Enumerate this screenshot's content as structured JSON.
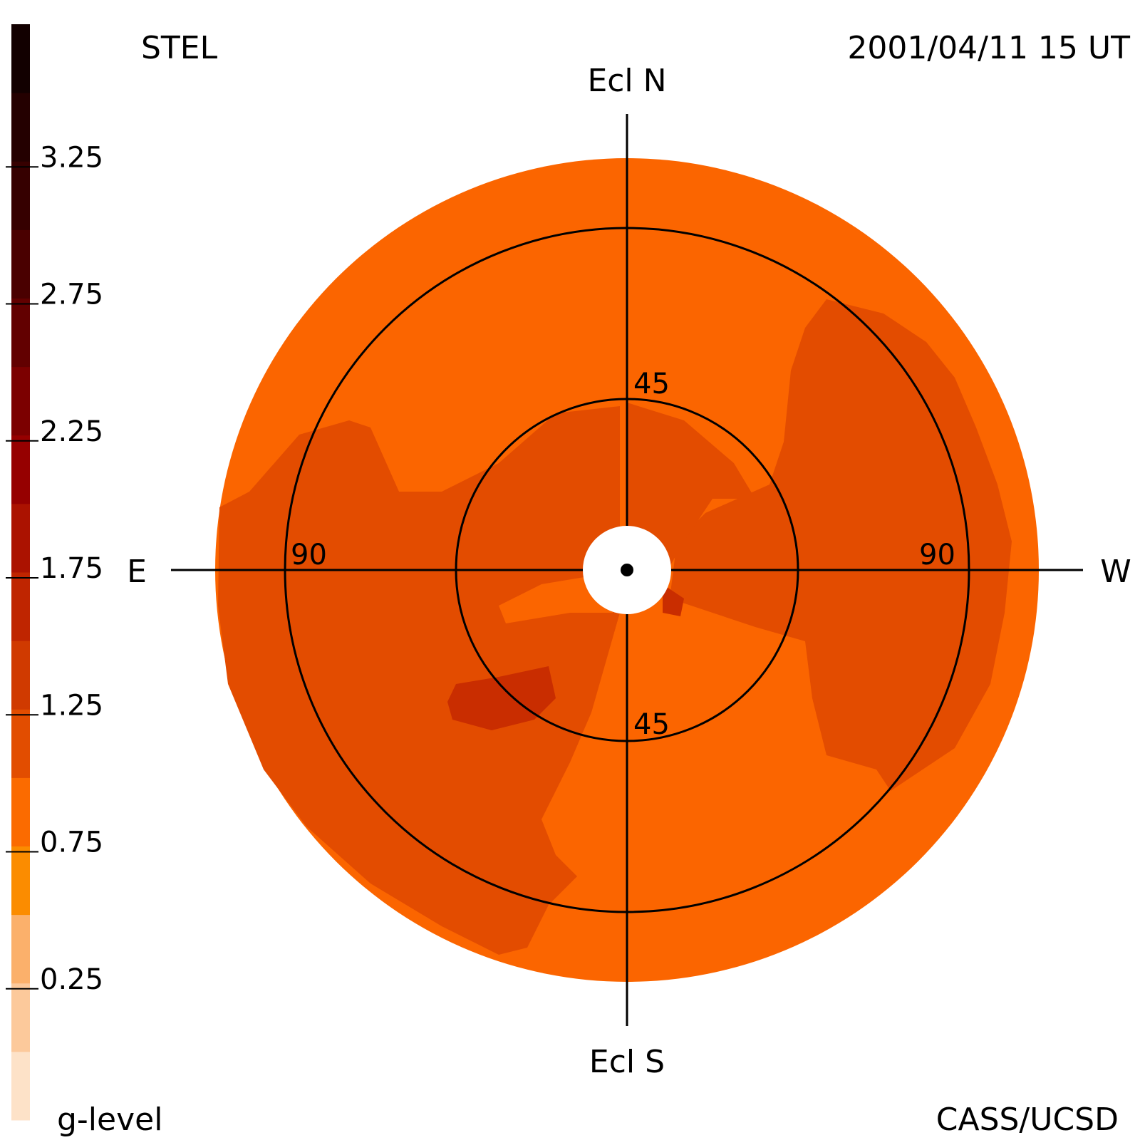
{
  "header": {
    "instrument": "STEL",
    "timestamp": "2001/04/11 15 UT",
    "credit": "CASS/UCSD"
  },
  "compass": {
    "north": "Ecl N",
    "south": "Ecl S",
    "east": "E",
    "west": "W"
  },
  "colorbar": {
    "label": "g-level",
    "ticks": [
      "3.25",
      "2.75",
      "2.25",
      "1.75",
      "1.25",
      "0.75",
      "0.25"
    ],
    "bands": [
      "#fde2c8",
      "#fcc99b",
      "#fbb06b",
      "#fb8c00",
      "#fb6b00",
      "#e24d00",
      "#d03a00",
      "#bf2500",
      "#ab1200",
      "#960000",
      "#7c0000",
      "#620000",
      "#4a0000",
      "#360000",
      "#240000",
      "#120000"
    ]
  },
  "chart_data": {
    "type": "heatmap",
    "projection": "polar sky map, elongation from Sun",
    "title": "",
    "ring_labels": {
      "inner": "45",
      "outer": "90"
    },
    "rings_elongation_deg": [
      45,
      90
    ],
    "map_colors": {
      "outer_band": "#fb6500",
      "inner_band": "#e34c00",
      "enhanced": "#c92d00"
    }
  }
}
